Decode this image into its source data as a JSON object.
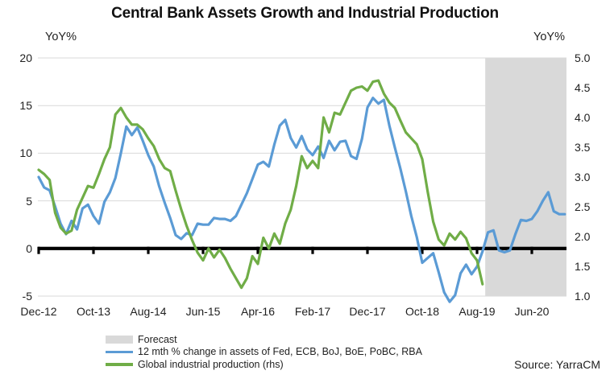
{
  "title": "Central Bank Assets Growth and Industrial Production",
  "source": "Source: YarraCM",
  "chart_data": {
    "type": "line",
    "title": "Central Bank Assets Growth and Industrial Production",
    "grid": true,
    "legend_position": "bottom-left",
    "left_axis": {
      "label": "YoY%",
      "tick_labels": [
        "20",
        "15",
        "10",
        "5",
        "0",
        "-5"
      ],
      "tick_values": [
        20,
        15,
        10,
        5,
        0,
        -5
      ],
      "range": [
        -5,
        20
      ]
    },
    "right_axis": {
      "label": "YoY%",
      "tick_labels": [
        "5.0",
        "4.5",
        "4.0",
        "3.5",
        "3.0",
        "2.5",
        "2.0",
        "1.5",
        "1.0"
      ],
      "tick_values": [
        5.0,
        4.5,
        4.0,
        3.5,
        3.0,
        2.5,
        2.0,
        1.5,
        1.0
      ],
      "range": [
        1.0,
        5.0
      ]
    },
    "x_axis": {
      "tick_labels": [
        "Dec-12",
        "Oct-13",
        "Aug-14",
        "Jun-15",
        "Apr-16",
        "Feb-17",
        "Dec-17",
        "Oct-18",
        "Aug-19",
        "Jun-20"
      ],
      "tick_month_positions": [
        0,
        10,
        20,
        30,
        40,
        50,
        60,
        70,
        80,
        90
      ],
      "start_label": "Dec-12",
      "months_span": 96
    },
    "zero_line": {
      "color": "#000000"
    },
    "forecast": {
      "label": "Forecast",
      "start_month": 81.5,
      "color": "#d9d9d9"
    },
    "gridline_color": "#d9d9d9",
    "series": [
      {
        "name": "12 mth % change in assets of Fed, ECB, BoJ, BoE, PoBC, RBA",
        "axis": "left",
        "color": "#5b9bd5",
        "start": "Dec-12",
        "frequency": "monthly",
        "values": [
          7.5,
          6.4,
          6.1,
          4.4,
          2.6,
          1.5,
          2.9,
          2.0,
          4.2,
          4.6,
          3.4,
          2.6,
          4.9,
          5.9,
          7.4,
          10.0,
          12.8,
          11.9,
          12.7,
          11.3,
          9.8,
          8.6,
          6.5,
          4.8,
          3.2,
          1.4,
          1.0,
          1.6,
          1.4,
          2.6,
          2.5,
          2.5,
          3.2,
          3.1,
          3.1,
          2.9,
          3.4,
          4.6,
          5.8,
          7.3,
          8.8,
          9.1,
          8.6,
          10.9,
          12.9,
          13.5,
          11.6,
          10.6,
          11.8,
          10.4,
          9.8,
          10.7,
          9.5,
          11.3,
          10.3,
          11.2,
          11.3,
          9.7,
          9.4,
          11.5,
          14.8,
          15.8,
          15.2,
          15.6,
          12.9,
          10.6,
          8.4,
          6.0,
          3.4,
          1.2,
          -1.5,
          -1.0,
          -0.5,
          -2.5,
          -4.6,
          -5.6,
          -4.9,
          -2.6,
          -1.7,
          -2.7,
          -1.9,
          -0.3,
          1.7,
          1.9,
          -0.2,
          -0.4,
          -0.2,
          1.5,
          3.0,
          2.9,
          3.1,
          3.9,
          5.0,
          5.9,
          3.9,
          3.6,
          3.6
        ]
      },
      {
        "name": "Global industrial production (rhs)",
        "axis": "right",
        "color": "#70ad47",
        "start": "Dec-12",
        "frequency": "monthly",
        "values": [
          3.12,
          3.05,
          2.95,
          2.4,
          2.15,
          2.05,
          2.1,
          2.45,
          2.65,
          2.85,
          2.82,
          3.05,
          3.3,
          3.5,
          4.05,
          4.16,
          4.0,
          3.88,
          3.88,
          3.8,
          3.65,
          3.52,
          3.3,
          3.15,
          3.1,
          2.77,
          2.46,
          2.18,
          1.94,
          1.73,
          1.6,
          1.8,
          1.65,
          1.78,
          1.64,
          1.46,
          1.3,
          1.14,
          1.3,
          1.67,
          1.54,
          1.98,
          1.8,
          2.05,
          1.88,
          2.22,
          2.45,
          2.85,
          3.35,
          3.15,
          3.27,
          3.15,
          4.0,
          3.75,
          4.08,
          4.05,
          4.25,
          4.45,
          4.5,
          4.52,
          4.45,
          4.6,
          4.62,
          4.4,
          4.25,
          4.16,
          3.95,
          3.75,
          3.65,
          3.55,
          3.3,
          2.75,
          2.25,
          1.95,
          1.85,
          2.05,
          1.95,
          2.08,
          1.97,
          1.72,
          1.6,
          1.2
        ]
      }
    ]
  }
}
